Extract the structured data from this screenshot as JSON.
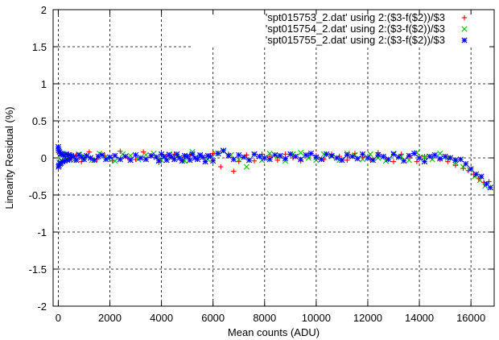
{
  "chart_data": {
    "type": "scatter",
    "title": "",
    "xlabel": "Mean counts (ADU)",
    "ylabel": "Linearity Residual (%)",
    "xlim": [
      -200,
      16900
    ],
    "ylim": [
      -2,
      2
    ],
    "xticks": [
      0,
      2000,
      4000,
      6000,
      8000,
      10000,
      12000,
      14000,
      16000
    ],
    "xtick_labels": [
      "0",
      "2000",
      "4000",
      "6000",
      "8000",
      "10000",
      "12000",
      "14000",
      "16000"
    ],
    "yticks": [
      -2,
      -1.5,
      -1,
      -0.5,
      0,
      0.5,
      1,
      1.5,
      2
    ],
    "ytick_labels": [
      "-2",
      "-1.5",
      "-1",
      "-0.5",
      "0",
      "0.5",
      "1",
      "1.5",
      "2"
    ],
    "grid": true,
    "legend_position": "top-right",
    "series": [
      {
        "name": "'spt015753_2.dat' using 2:($3-f($2))/$3",
        "color": "#ff0000",
        "marker": "plus",
        "x": [
          0,
          30,
          60,
          100,
          150,
          200,
          300,
          400,
          500,
          700,
          900,
          1200,
          1500,
          1800,
          2100,
          2400,
          2700,
          3000,
          3300,
          3600,
          3900,
          4200,
          4500,
          4800,
          5100,
          5400,
          5700,
          6000,
          6300,
          6600,
          6800,
          7000,
          7300,
          7600,
          7900,
          8200,
          8500,
          8800,
          9100,
          9400,
          9700,
          10000,
          10300,
          10600,
          10900,
          11200,
          11500,
          11800,
          12100,
          12400,
          12700,
          13000,
          13300,
          13600,
          13900,
          14200,
          14500,
          14800,
          15100,
          15400,
          15700,
          15900,
          16100,
          16300,
          16500,
          16700
        ],
        "values": [
          0.1,
          -0.08,
          0.06,
          -0.05,
          0.04,
          0.02,
          -0.03,
          0.05,
          0.0,
          0.03,
          -0.05,
          0.08,
          -0.02,
          0.03,
          -0.04,
          0.09,
          0.0,
          -0.02,
          0.08,
          0.03,
          -0.06,
          0.02,
          0.05,
          -0.02,
          0.04,
          0.0,
          -0.05,
          0.06,
          -0.12,
          0.05,
          -0.18,
          -0.05,
          0.04,
          -0.04,
          0.05,
          0.02,
          -0.03,
          0.05,
          0.0,
          -0.04,
          0.04,
          0.03,
          -0.02,
          0.05,
          0.02,
          -0.03,
          0.06,
          0.01,
          -0.02,
          0.07,
          0.0,
          -0.05,
          0.05,
          0.02,
          -0.05,
          0.02,
          0.0,
          -0.02,
          -0.05,
          -0.1,
          -0.14,
          -0.17,
          -0.22,
          -0.28,
          -0.33,
          -0.32
        ]
      },
      {
        "name": "'spt015754_2.dat' using 2:($3-f($2))/$3",
        "color": "#00c000",
        "marker": "cross",
        "x": [
          0,
          40,
          80,
          120,
          180,
          250,
          350,
          450,
          600,
          800,
          1000,
          1300,
          1600,
          1900,
          2200,
          2500,
          2800,
          3100,
          3400,
          3700,
          4000,
          4300,
          4600,
          4900,
          5200,
          5500,
          5800,
          6100,
          6400,
          6700,
          7000,
          7300,
          7600,
          7900,
          8200,
          8500,
          8800,
          9100,
          9400,
          9700,
          10000,
          10300,
          10600,
          10900,
          11200,
          11500,
          11800,
          12100,
          12400,
          12700,
          13000,
          13300,
          13600,
          13900,
          14200,
          14500,
          14800,
          15100,
          15400,
          15700,
          15950,
          16150,
          16350,
          16550,
          16750
        ],
        "values": [
          0.12,
          -0.06,
          0.05,
          -0.04,
          0.06,
          0.01,
          -0.02,
          0.04,
          -0.03,
          0.05,
          0.02,
          -0.03,
          0.06,
          0.0,
          -0.04,
          0.05,
          0.03,
          -0.02,
          0.04,
          0.06,
          -0.03,
          0.05,
          0.02,
          -0.04,
          0.08,
          0.03,
          -0.02,
          0.06,
          0.09,
          0.04,
          -0.02,
          -0.12,
          0.05,
          -0.03,
          0.06,
          0.02,
          -0.04,
          0.05,
          0.07,
          0.0,
          -0.03,
          0.05,
          0.02,
          -0.03,
          0.06,
          0.04,
          -0.02,
          0.05,
          0.0,
          -0.04,
          0.06,
          0.02,
          -0.03,
          0.07,
          0.01,
          -0.02,
          0.06,
          0.0,
          -0.06,
          -0.12,
          -0.16,
          -0.25,
          -0.3,
          -0.38,
          -0.4
        ]
      },
      {
        "name": "'spt015755_2.dat' using 2:($3-f($2))/$3",
        "color": "#0000ff",
        "marker": "star",
        "x": [
          0,
          10,
          20,
          30,
          50,
          70,
          90,
          110,
          140,
          170,
          200,
          250,
          300,
          350,
          400,
          450,
          500,
          600,
          700,
          800,
          900,
          1000,
          1100,
          1250,
          1400,
          1550,
          1700,
          1850,
          2000,
          2200,
          2400,
          2600,
          2800,
          3000,
          3200,
          3400,
          3600,
          3800,
          3900,
          4000,
          4100,
          4200,
          4300,
          4400,
          4500,
          4600,
          4700,
          4800,
          4900,
          5000,
          5100,
          5200,
          5300,
          5400,
          5500,
          5600,
          5700,
          5800,
          5900,
          6000,
          6200,
          6400,
          6600,
          6800,
          7000,
          7200,
          7400,
          7600,
          7800,
          8000,
          8200,
          8400,
          8600,
          8800,
          9000,
          9200,
          9400,
          9600,
          9800,
          10000,
          10200,
          10400,
          10600,
          10800,
          11000,
          11200,
          11400,
          11600,
          11800,
          12000,
          12200,
          12400,
          12600,
          12800,
          13000,
          13200,
          13400,
          13600,
          13800,
          14000,
          14200,
          14400,
          14600,
          14800,
          15000,
          15200,
          15400,
          15600,
          15800,
          16000,
          16200,
          16400,
          16600,
          16750
        ],
        "values": [
          0.15,
          -0.12,
          0.1,
          -0.1,
          0.08,
          -0.08,
          0.06,
          -0.07,
          0.05,
          -0.05,
          0.04,
          -0.04,
          0.05,
          -0.03,
          0.04,
          -0.02,
          0.03,
          0.02,
          -0.03,
          0.04,
          0.01,
          -0.02,
          0.03,
          0.0,
          -0.03,
          0.02,
          0.04,
          -0.02,
          0.01,
          0.03,
          -0.02,
          0.02,
          -0.03,
          0.04,
          0.0,
          -0.02,
          0.03,
          0.01,
          -0.04,
          0.05,
          0.02,
          -0.03,
          0.04,
          0.01,
          -0.02,
          0.05,
          0.0,
          -0.04,
          0.03,
          0.02,
          -0.03,
          0.05,
          0.0,
          -0.02,
          0.04,
          0.01,
          -0.05,
          0.03,
          0.02,
          -0.04,
          0.06,
          0.1,
          0.03,
          -0.02,
          0.04,
          0.01,
          -0.03,
          0.05,
          0.02,
          0.0,
          -0.02,
          0.04,
          0.03,
          -0.01,
          0.05,
          0.02,
          -0.02,
          0.04,
          0.06,
          0.01,
          -0.02,
          0.05,
          0.03,
          0.0,
          -0.03,
          0.04,
          0.02,
          -0.01,
          0.05,
          0.0,
          -0.03,
          0.04,
          0.02,
          -0.02,
          0.05,
          0.01,
          -0.04,
          0.03,
          0.06,
          0.0,
          -0.05,
          0.02,
          0.04,
          -0.01,
          0.02,
          0.0,
          -0.03,
          -0.02,
          -0.08,
          -0.15,
          -0.22,
          -0.25,
          -0.35,
          -0.4
        ]
      }
    ]
  }
}
